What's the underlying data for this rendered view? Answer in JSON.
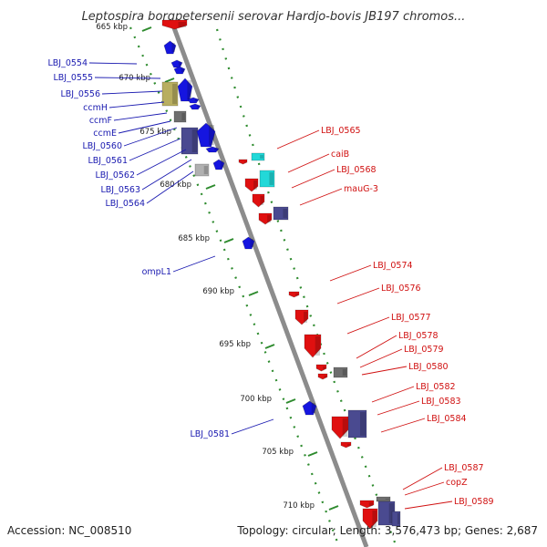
{
  "title": "Leptospira borgpetersenii serovar Hardjo-bovis JB197 chromos...",
  "footer": {
    "accession": "Accession: NC_008510",
    "summary": "Topology: circular; Length: 3,576,473 bp; Genes: 2,687"
  },
  "colors": {
    "backbone": "#8c8c8c",
    "track_dots": "#2e8b2e",
    "forward_gene": "#1515e0",
    "reverse_gene": "#e01010",
    "dark_gene": "#4a4a90",
    "olive_gene": "#b8ae60",
    "cyan_gene": "#22d8d8",
    "gray_gene": "#6e6e6e",
    "light_gray_gene": "#b0b0b0",
    "forward_label": "#1a1ab0",
    "reverse_label": "#d01010"
  },
  "ticks": [
    "665 kbp",
    "670 kbp",
    "675 kbp",
    "680 kbp",
    "685 kbp",
    "690 kbp",
    "695 kbp",
    "700 kbp",
    "705 kbp",
    "710 kbp"
  ],
  "forward_labels": [
    "LBJ_0554",
    "LBJ_0555",
    "LBJ_0556",
    "ccmH",
    "ccmF",
    "ccmE",
    "LBJ_0560",
    "LBJ_0561",
    "LBJ_0562",
    "LBJ_0563",
    "LBJ_0564",
    "ompL1",
    "LBJ_0581"
  ],
  "reverse_labels": [
    "LBJ_0565",
    "caiB",
    "LBJ_0568",
    "mauG-3",
    "LBJ_0574",
    "LBJ_0576",
    "LBJ_0577",
    "LBJ_0578",
    "LBJ_0579",
    "LBJ_0580",
    "LBJ_0582",
    "LBJ_0583",
    "LBJ_0584",
    "LBJ_0587",
    "copZ",
    "LBJ_0589"
  ]
}
